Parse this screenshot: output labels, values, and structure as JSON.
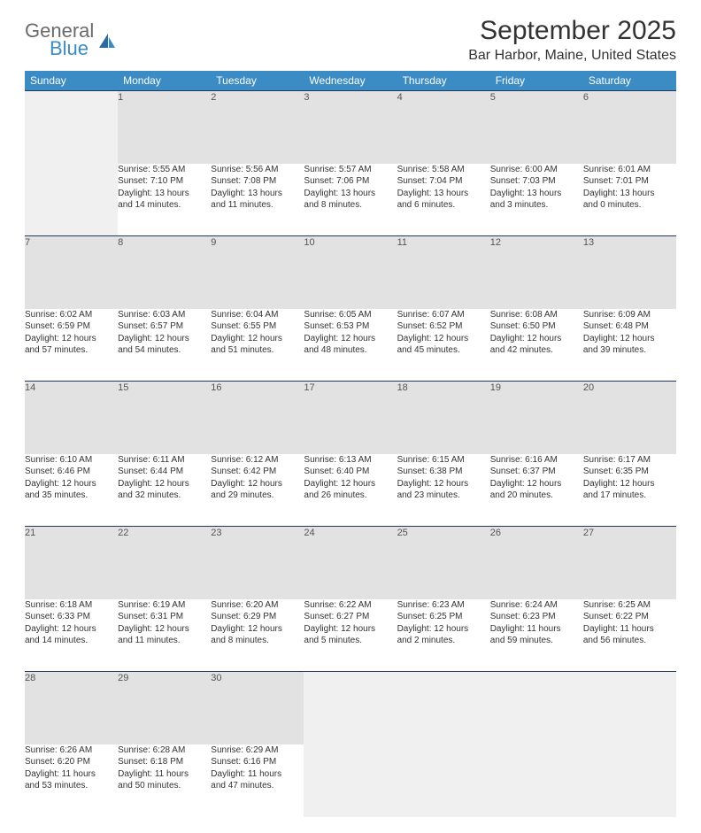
{
  "logo": {
    "general": "General",
    "blue": "Blue"
  },
  "title": "September 2025",
  "location": "Bar Harbor, Maine, United States",
  "header_bg": "#3b8bc4",
  "daynum_bg": "#e2e2e2",
  "empty_bg": "#f0f0f0",
  "row_border": "#1e3a5f",
  "day_headers": [
    "Sunday",
    "Monday",
    "Tuesday",
    "Wednesday",
    "Thursday",
    "Friday",
    "Saturday"
  ],
  "weeks": [
    {
      "nums": [
        "",
        "1",
        "2",
        "3",
        "4",
        "5",
        "6"
      ],
      "cells": [
        null,
        {
          "sunrise": "Sunrise: 5:55 AM",
          "sunset": "Sunset: 7:10 PM",
          "day1": "Daylight: 13 hours",
          "day2": "and 14 minutes."
        },
        {
          "sunrise": "Sunrise: 5:56 AM",
          "sunset": "Sunset: 7:08 PM",
          "day1": "Daylight: 13 hours",
          "day2": "and 11 minutes."
        },
        {
          "sunrise": "Sunrise: 5:57 AM",
          "sunset": "Sunset: 7:06 PM",
          "day1": "Daylight: 13 hours",
          "day2": "and 8 minutes."
        },
        {
          "sunrise": "Sunrise: 5:58 AM",
          "sunset": "Sunset: 7:04 PM",
          "day1": "Daylight: 13 hours",
          "day2": "and 6 minutes."
        },
        {
          "sunrise": "Sunrise: 6:00 AM",
          "sunset": "Sunset: 7:03 PM",
          "day1": "Daylight: 13 hours",
          "day2": "and 3 minutes."
        },
        {
          "sunrise": "Sunrise: 6:01 AM",
          "sunset": "Sunset: 7:01 PM",
          "day1": "Daylight: 13 hours",
          "day2": "and 0 minutes."
        }
      ]
    },
    {
      "nums": [
        "7",
        "8",
        "9",
        "10",
        "11",
        "12",
        "13"
      ],
      "cells": [
        {
          "sunrise": "Sunrise: 6:02 AM",
          "sunset": "Sunset: 6:59 PM",
          "day1": "Daylight: 12 hours",
          "day2": "and 57 minutes."
        },
        {
          "sunrise": "Sunrise: 6:03 AM",
          "sunset": "Sunset: 6:57 PM",
          "day1": "Daylight: 12 hours",
          "day2": "and 54 minutes."
        },
        {
          "sunrise": "Sunrise: 6:04 AM",
          "sunset": "Sunset: 6:55 PM",
          "day1": "Daylight: 12 hours",
          "day2": "and 51 minutes."
        },
        {
          "sunrise": "Sunrise: 6:05 AM",
          "sunset": "Sunset: 6:53 PM",
          "day1": "Daylight: 12 hours",
          "day2": "and 48 minutes."
        },
        {
          "sunrise": "Sunrise: 6:07 AM",
          "sunset": "Sunset: 6:52 PM",
          "day1": "Daylight: 12 hours",
          "day2": "and 45 minutes."
        },
        {
          "sunrise": "Sunrise: 6:08 AM",
          "sunset": "Sunset: 6:50 PM",
          "day1": "Daylight: 12 hours",
          "day2": "and 42 minutes."
        },
        {
          "sunrise": "Sunrise: 6:09 AM",
          "sunset": "Sunset: 6:48 PM",
          "day1": "Daylight: 12 hours",
          "day2": "and 39 minutes."
        }
      ]
    },
    {
      "nums": [
        "14",
        "15",
        "16",
        "17",
        "18",
        "19",
        "20"
      ],
      "cells": [
        {
          "sunrise": "Sunrise: 6:10 AM",
          "sunset": "Sunset: 6:46 PM",
          "day1": "Daylight: 12 hours",
          "day2": "and 35 minutes."
        },
        {
          "sunrise": "Sunrise: 6:11 AM",
          "sunset": "Sunset: 6:44 PM",
          "day1": "Daylight: 12 hours",
          "day2": "and 32 minutes."
        },
        {
          "sunrise": "Sunrise: 6:12 AM",
          "sunset": "Sunset: 6:42 PM",
          "day1": "Daylight: 12 hours",
          "day2": "and 29 minutes."
        },
        {
          "sunrise": "Sunrise: 6:13 AM",
          "sunset": "Sunset: 6:40 PM",
          "day1": "Daylight: 12 hours",
          "day2": "and 26 minutes."
        },
        {
          "sunrise": "Sunrise: 6:15 AM",
          "sunset": "Sunset: 6:38 PM",
          "day1": "Daylight: 12 hours",
          "day2": "and 23 minutes."
        },
        {
          "sunrise": "Sunrise: 6:16 AM",
          "sunset": "Sunset: 6:37 PM",
          "day1": "Daylight: 12 hours",
          "day2": "and 20 minutes."
        },
        {
          "sunrise": "Sunrise: 6:17 AM",
          "sunset": "Sunset: 6:35 PM",
          "day1": "Daylight: 12 hours",
          "day2": "and 17 minutes."
        }
      ]
    },
    {
      "nums": [
        "21",
        "22",
        "23",
        "24",
        "25",
        "26",
        "27"
      ],
      "cells": [
        {
          "sunrise": "Sunrise: 6:18 AM",
          "sunset": "Sunset: 6:33 PM",
          "day1": "Daylight: 12 hours",
          "day2": "and 14 minutes."
        },
        {
          "sunrise": "Sunrise: 6:19 AM",
          "sunset": "Sunset: 6:31 PM",
          "day1": "Daylight: 12 hours",
          "day2": "and 11 minutes."
        },
        {
          "sunrise": "Sunrise: 6:20 AM",
          "sunset": "Sunset: 6:29 PM",
          "day1": "Daylight: 12 hours",
          "day2": "and 8 minutes."
        },
        {
          "sunrise": "Sunrise: 6:22 AM",
          "sunset": "Sunset: 6:27 PM",
          "day1": "Daylight: 12 hours",
          "day2": "and 5 minutes."
        },
        {
          "sunrise": "Sunrise: 6:23 AM",
          "sunset": "Sunset: 6:25 PM",
          "day1": "Daylight: 12 hours",
          "day2": "and 2 minutes."
        },
        {
          "sunrise": "Sunrise: 6:24 AM",
          "sunset": "Sunset: 6:23 PM",
          "day1": "Daylight: 11 hours",
          "day2": "and 59 minutes."
        },
        {
          "sunrise": "Sunrise: 6:25 AM",
          "sunset": "Sunset: 6:22 PM",
          "day1": "Daylight: 11 hours",
          "day2": "and 56 minutes."
        }
      ]
    },
    {
      "nums": [
        "28",
        "29",
        "30",
        "",
        "",
        "",
        ""
      ],
      "cells": [
        {
          "sunrise": "Sunrise: 6:26 AM",
          "sunset": "Sunset: 6:20 PM",
          "day1": "Daylight: 11 hours",
          "day2": "and 53 minutes."
        },
        {
          "sunrise": "Sunrise: 6:28 AM",
          "sunset": "Sunset: 6:18 PM",
          "day1": "Daylight: 11 hours",
          "day2": "and 50 minutes."
        },
        {
          "sunrise": "Sunrise: 6:29 AM",
          "sunset": "Sunset: 6:16 PM",
          "day1": "Daylight: 11 hours",
          "day2": "and 47 minutes."
        },
        null,
        null,
        null,
        null
      ]
    }
  ]
}
